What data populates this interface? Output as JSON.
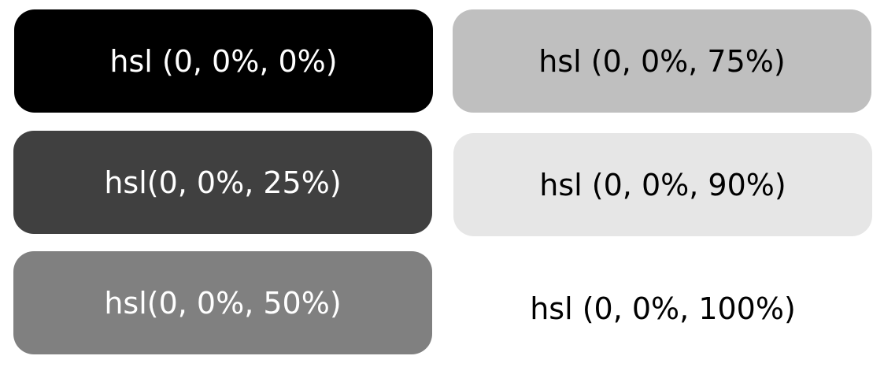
{
  "swatches": [
    {
      "label": "hsl (0, 0%, 0%)",
      "color": "#000000",
      "lightness_percent": 0
    },
    {
      "label": "hsl(0, 0%, 25%)",
      "color": "#404040",
      "lightness_percent": 25
    },
    {
      "label": "hsl(0, 0%, 50%)",
      "color": "#808080",
      "lightness_percent": 50
    },
    {
      "label": "hsl (0, 0%, 75%)",
      "color": "#bfbfbf",
      "lightness_percent": 75
    },
    {
      "label": "hsl (0, 0%, 90%)",
      "color": "#e6e6e6",
      "lightness_percent": 90
    },
    {
      "label": "hsl (0, 0%, 100%)",
      "color": "#ffffff",
      "lightness_percent": 100
    }
  ]
}
